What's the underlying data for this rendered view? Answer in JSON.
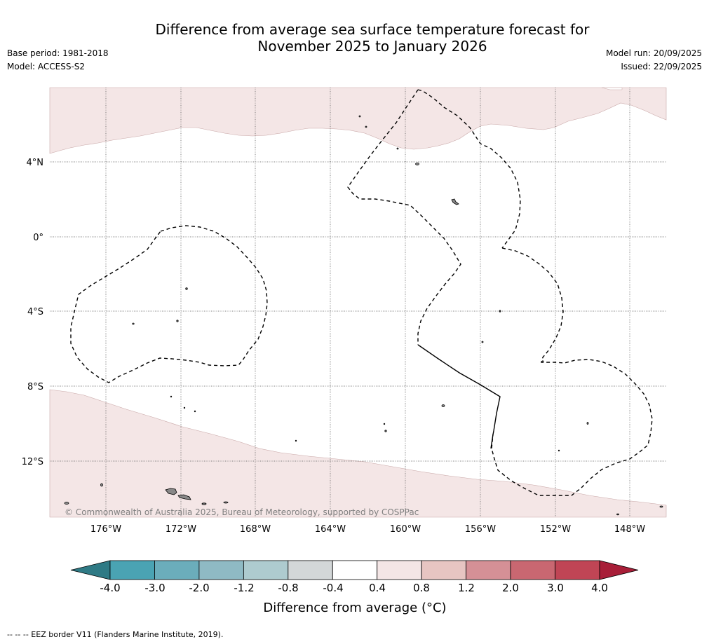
{
  "title": {
    "line1": "Difference from average sea surface temperature forecast for",
    "line2": "November 2025 to January 2026"
  },
  "meta_left": {
    "base_period": "Base period: 1981-2018",
    "model": "Model: ACCESS-S2"
  },
  "meta_right": {
    "model_run": "Model run: 20/09/2025",
    "issued": "Issued: 22/09/2025"
  },
  "map": {
    "lat_labels": [
      "4°N",
      "0°",
      "4°S",
      "8°S",
      "12°S"
    ],
    "lon_labels": [
      "176°W",
      "172°W",
      "168°W",
      "164°W",
      "160°W",
      "156°W",
      "152°W",
      "148°W"
    ],
    "copyright": "© Commonwealth of Australia 2025, Bureau of Meteorology, supported by COSPPac",
    "shading_color": "#f4e6e6"
  },
  "colorbar": {
    "tick_labels": [
      "-4.0",
      "-3.0",
      "-2.0",
      "-1.2",
      "-0.8",
      "-0.4",
      "0.4",
      "0.8",
      "1.2",
      "2.0",
      "3.0",
      "4.0"
    ],
    "label": "Difference from average (°C)",
    "colors": [
      "#2f7a85",
      "#4aa3b3",
      "#6badbb",
      "#8fbac4",
      "#aecbcf",
      "#d3d7d8",
      "#ffffff",
      "#f4e6e6",
      "#e7c5c2",
      "#d59096",
      "#c96771",
      "#c04555",
      "#a81e38"
    ]
  },
  "footer": "--  --  -- EEZ border V11 (Flanders Marine Institute, 2019)."
}
